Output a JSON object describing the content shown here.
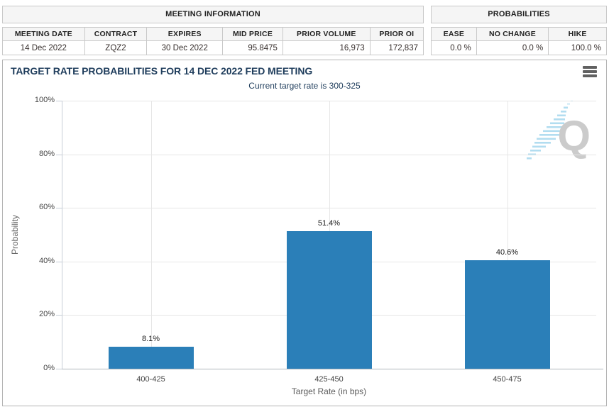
{
  "meeting_info": {
    "title": "MEETING INFORMATION",
    "columns": [
      "MEETING DATE",
      "CONTRACT",
      "EXPIRES",
      "MID PRICE",
      "PRIOR VOLUME",
      "PRIOR OI"
    ],
    "values": [
      "14 Dec 2022",
      "ZQZ2",
      "30 Dec 2022",
      "95.8475",
      "16,973",
      "172,837"
    ]
  },
  "probabilities": {
    "title": "PROBABILITIES",
    "columns": [
      "EASE",
      "NO CHANGE",
      "HIKE"
    ],
    "values": [
      "0.0 %",
      "0.0 %",
      "100.0 %"
    ]
  },
  "chart": {
    "menu_icon": "hamburger-menu",
    "watermark_icon": "quikstrike-q-logo"
  },
  "chart_data": {
    "type": "bar",
    "title": "TARGET RATE PROBABILITIES FOR 14 DEC 2022 FED MEETING",
    "subtitle": "Current target rate is 300-325",
    "categories": [
      "400-425",
      "425-450",
      "450-475"
    ],
    "values": [
      8.1,
      51.4,
      40.6
    ],
    "value_labels": [
      "8.1%",
      "51.4%",
      "40.6%"
    ],
    "xlabel": "Target Rate (in bps)",
    "ylabel": "Probability",
    "ylim": [
      0,
      100
    ],
    "ytick_step": 20,
    "ytick_suffix": "%",
    "grid": true,
    "legend": "none",
    "bar_color": "#2b7fb8",
    "grid_color": "#e6e6e6",
    "title_color": "#1f3d5c"
  }
}
